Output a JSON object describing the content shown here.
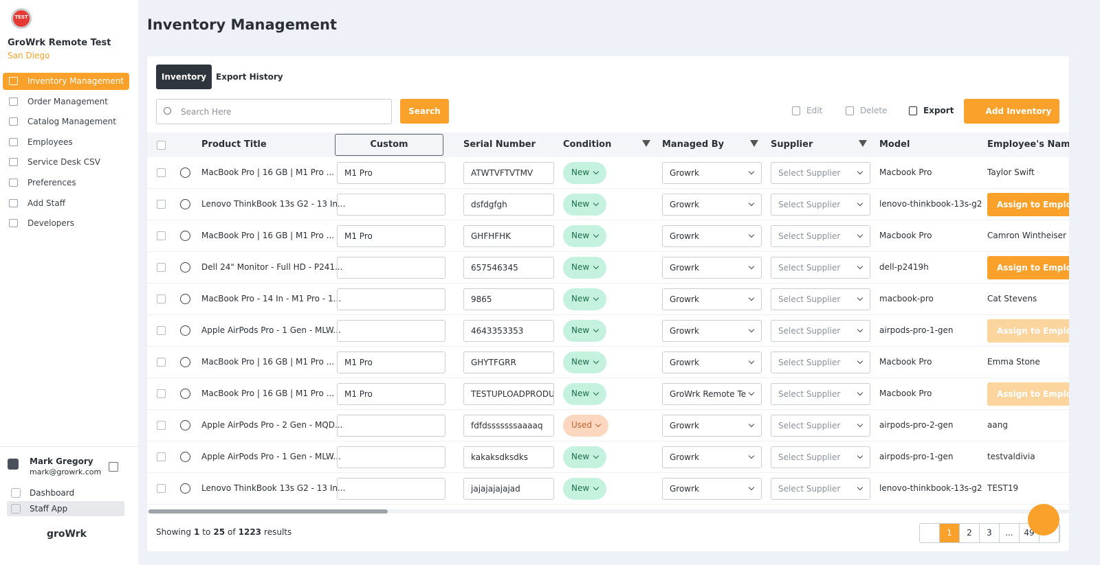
{
  "sidebar": {
    "logo_badge": "TEST",
    "org_name": "GroWrk Remote Test",
    "location": "San Diego",
    "nav": [
      "Inventory Management",
      "Order Management",
      "Catalog Management",
      "Employees",
      "Service Desk CSV",
      "Preferences",
      "Add Staff",
      "Developers"
    ],
    "user": {
      "name": "Mark Gregory",
      "email": "mark@growrk.com"
    },
    "links": [
      "Dashboard",
      "Staff App"
    ],
    "brand": "groWrk"
  },
  "header": {
    "title": "Inventory Management"
  },
  "tabs": [
    "Inventory",
    "Export History"
  ],
  "toolbar": {
    "search_placeholder": "Search Here",
    "search_button": "Search",
    "actions": [
      "Edit",
      "Delete",
      "Export"
    ],
    "primary": "Add Inventory"
  },
  "table": {
    "columns": [
      "Product Title",
      "Custom",
      "Serial Number",
      "Condition",
      "Managed By",
      "Supplier",
      "Model",
      "Employee's Name"
    ],
    "rows": [
      [
        "MacBook Pro | 16 GB | M1 Pro ...",
        "M1 Pro",
        "ATWTVFTVTMV",
        "New",
        "Growrk",
        "Select Supplier",
        "Macbook Pro",
        {
          "name": "Taylor Swift"
        }
      ],
      [
        "Lenovo ThinkBook 13s G2 - 13 In...",
        "",
        "dsfdgfgh",
        "New",
        "Growrk",
        "Select Supplier",
        "lenovo-thinkbook-13s-g2",
        {
          "action": "Assign to Employee",
          "disabled": false
        }
      ],
      [
        "MacBook Pro | 16 GB | M1 Pro ...",
        "M1 Pro",
        "GHFHFHK",
        "New",
        "Growrk",
        "Select Supplier",
        "Macbook Pro",
        {
          "name": "Camron Wintheiser"
        }
      ],
      [
        "Dell 24\" Monitor - Full HD - P241...",
        "",
        "657546345",
        "New",
        "Growrk",
        "Select Supplier",
        "dell-p2419h",
        {
          "action": "Assign to Employee",
          "disabled": false
        }
      ],
      [
        "MacBook Pro - 14 In - M1 Pro - 1...",
        "",
        "9865",
        "New",
        "Growrk",
        "Select Supplier",
        "macbook-pro",
        {
          "name": "Cat Stevens"
        }
      ],
      [
        "Apple AirPods Pro - 1 Gen - MLW...",
        "",
        "4643353353",
        "New",
        "Growrk",
        "Select Supplier",
        "airpods-pro-1-gen",
        {
          "action": "Assign to Employee",
          "disabled": true
        }
      ],
      [
        "MacBook Pro | 16 GB | M1 Pro ...",
        "M1 Pro",
        "GHYTFGRR",
        "New",
        "Growrk",
        "Select Supplier",
        "Macbook Pro",
        {
          "name": "Emma Stone"
        }
      ],
      [
        "MacBook Pro | 16 GB | M1 Pro ...",
        "M1 Pro",
        "TESTUPLOADPRODU",
        "New",
        "GroWrk Remote Te",
        "Select Supplier",
        "Macbook Pro",
        {
          "action": "Assign to Employee",
          "disabled": true
        }
      ],
      [
        "Apple AirPods Pro - 2 Gen - MQD...",
        "",
        "fdfdsssssssaaaaq",
        "Used",
        "Growrk",
        "Select Supplier",
        "airpods-pro-2-gen",
        {
          "name": "aang"
        }
      ],
      [
        "Apple AirPods Pro - 1 Gen - MLW...",
        "",
        "kakaksdksdks",
        "New",
        "Growrk",
        "Select Supplier",
        "airpods-pro-1-gen",
        {
          "name": "testvaldivia"
        }
      ],
      [
        "Lenovo ThinkBook 13s G2 - 13 In...",
        "",
        "jajajajajajad",
        "New",
        "Growrk",
        "Select Supplier",
        "lenovo-thinkbook-13s-g2",
        {
          "name": "TEST19"
        }
      ]
    ]
  },
  "footer": {
    "showing": "Showing",
    "from": "1",
    "to_word": "to",
    "to": "25",
    "of_word": "of",
    "total": "1223",
    "results": "results"
  },
  "pagination": {
    "pages": [
      "1",
      "2",
      "3",
      "...",
      "49"
    ],
    "current": "1"
  }
}
